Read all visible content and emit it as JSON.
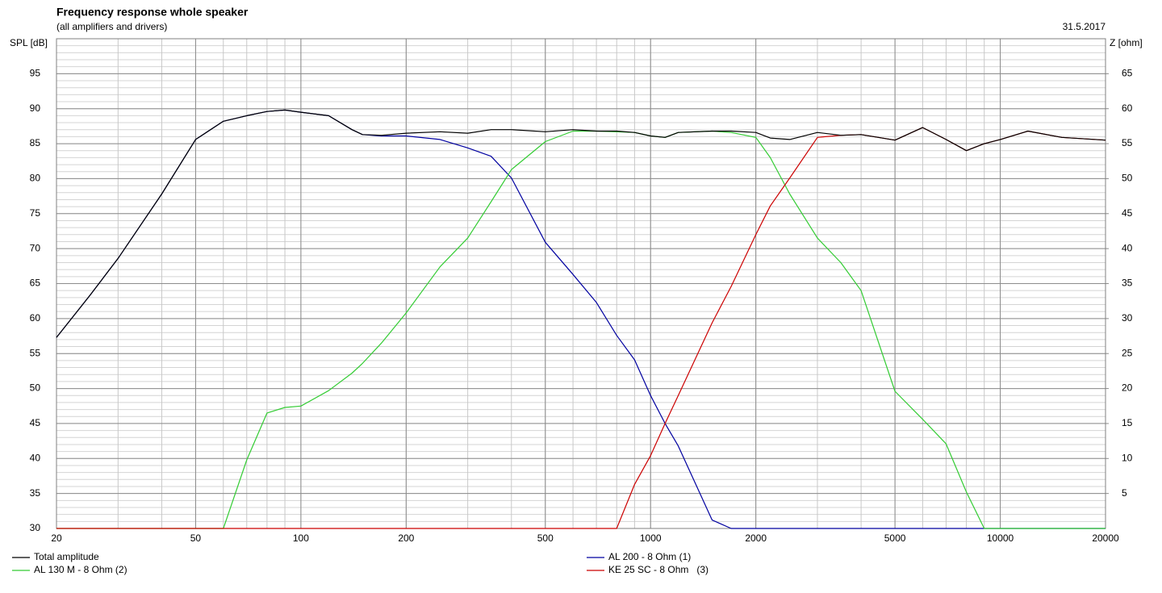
{
  "chart_data": {
    "type": "line",
    "title": "Frequency response whole speaker",
    "subtitle": "(all amplifiers and drivers)",
    "date": "31.5.2017",
    "y_label": "SPL [dB]",
    "y2_label": "Z [ohm]",
    "log_x": true,
    "grid": true,
    "minor_grid": true,
    "xlim": [
      20,
      20000
    ],
    "xticks": [
      20,
      50,
      100,
      200,
      500,
      1000,
      2000,
      5000,
      10000,
      20000
    ],
    "ylim": [
      30,
      100
    ],
    "yticks": [
      30,
      35,
      40,
      45,
      50,
      55,
      60,
      65,
      70,
      75,
      80,
      85,
      90,
      95
    ],
    "y2lim": [
      0,
      70
    ],
    "y2ticks": [
      5,
      10,
      15,
      20,
      25,
      30,
      35,
      40,
      45,
      50,
      55,
      60,
      65
    ],
    "x": [
      20,
      25,
      30,
      40,
      50,
      60,
      70,
      80,
      90,
      100,
      120,
      140,
      150,
      170,
      200,
      250,
      300,
      350,
      400,
      500,
      600,
      700,
      800,
      900,
      1000,
      1100,
      1200,
      1500,
      1700,
      2000,
      2200,
      2500,
      3000,
      3500,
      4000,
      5000,
      6000,
      7000,
      8000,
      9000,
      10000,
      12000,
      15000,
      20000
    ],
    "series": [
      {
        "name": "Total amplitude",
        "color": "#000000",
        "values": [
          57.3,
          63.4,
          68.6,
          77.8,
          85.6,
          88.2,
          89,
          89.6,
          89.8,
          89.5,
          89,
          87,
          86.3,
          86.2,
          86.5,
          86.7,
          86.5,
          87,
          87,
          86.7,
          87,
          86.8,
          86.8,
          86.6,
          86.1,
          85.9,
          86.6,
          86.8,
          86.8,
          86.6,
          85.8,
          85.6,
          86.6,
          86.2,
          86.3,
          85.5,
          87.3,
          85.6,
          84,
          85,
          85.6,
          86.8,
          85.9,
          85.5
        ]
      },
      {
        "name": "AL 200 - 8 Ohm (1)",
        "color": "#0000a0",
        "values": [
          57.3,
          63.4,
          68.6,
          77.8,
          85.6,
          88.2,
          89,
          89.6,
          89.8,
          89.5,
          89,
          87,
          86.3,
          86.1,
          86.1,
          85.6,
          84.4,
          83.2,
          80.1,
          70.9,
          66.3,
          62.3,
          57.6,
          54.1,
          49,
          45,
          41.8,
          31.2,
          30,
          30,
          30,
          30,
          30,
          30,
          30,
          30,
          30,
          30,
          30,
          30,
          30,
          30,
          30,
          30
        ]
      },
      {
        "name": "AL 130 M - 8 Ohm (2)",
        "color": "#33cc33",
        "values": [
          30,
          30,
          30,
          30,
          30,
          30,
          39.8,
          46.5,
          47.3,
          47.5,
          49.7,
          52.2,
          53.6,
          56.5,
          60.8,
          67.4,
          71.5,
          76.7,
          81.3,
          85.3,
          86.8,
          86.8,
          86.7,
          86.6,
          86.1,
          85.9,
          86.6,
          86.8,
          86.6,
          85.9,
          83,
          77.8,
          71.5,
          68,
          64,
          49.6,
          45.6,
          42.1,
          35.2,
          30,
          30,
          30,
          30,
          30
        ]
      },
      {
        "name": "KE 25 SC - 8 Ohm   (3)",
        "color": "#cc0000",
        "values": [
          30,
          30,
          30,
          30,
          30,
          30,
          30,
          30,
          30,
          30,
          30,
          30,
          30,
          30,
          30,
          30,
          30,
          30,
          30,
          30,
          30,
          30,
          30,
          36.3,
          40.4,
          45,
          49,
          59.4,
          64.6,
          72,
          76.1,
          80.1,
          85.9,
          86.2,
          86.3,
          85.5,
          87.3,
          85.6,
          84,
          85,
          85.6,
          86.8,
          85.9,
          85.5
        ]
      }
    ]
  }
}
